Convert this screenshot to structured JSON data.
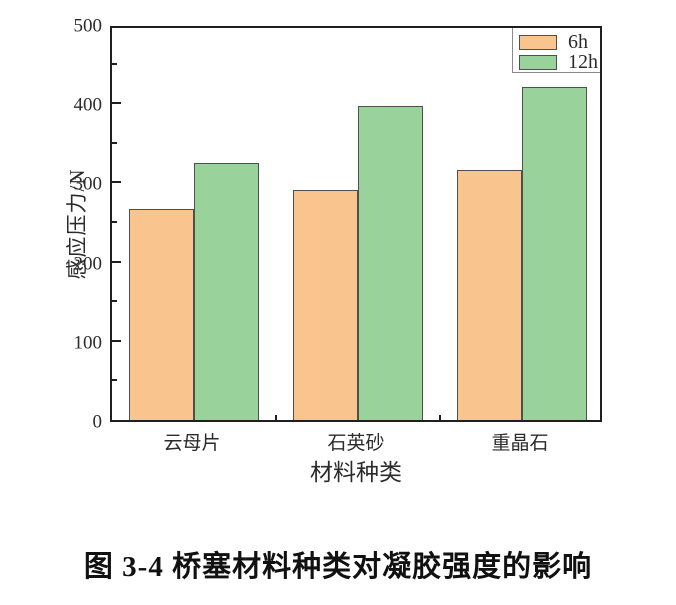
{
  "figure": {
    "caption": "图 3-4  桥塞材料种类对凝胶强度的影响"
  },
  "chart_data": {
    "type": "bar",
    "title": "",
    "xlabel": "材料种类",
    "ylabel": "感应压力/N",
    "categories": [
      "云母片",
      "石英砂",
      "重晶石"
    ],
    "series": [
      {
        "name": "6h",
        "color": "#FAC48E",
        "values": [
          267,
          291,
          316
        ]
      },
      {
        "name": "12h",
        "color": "#9AD29C",
        "values": [
          325,
          396,
          421
        ]
      }
    ],
    "ylim": [
      0,
      500
    ],
    "ytick_step": 100,
    "yminor_step": 50,
    "grid": false,
    "legend_position": "top-right",
    "bar_border_color": "#4f4f4f",
    "axis_color": "#1f1f1f"
  }
}
